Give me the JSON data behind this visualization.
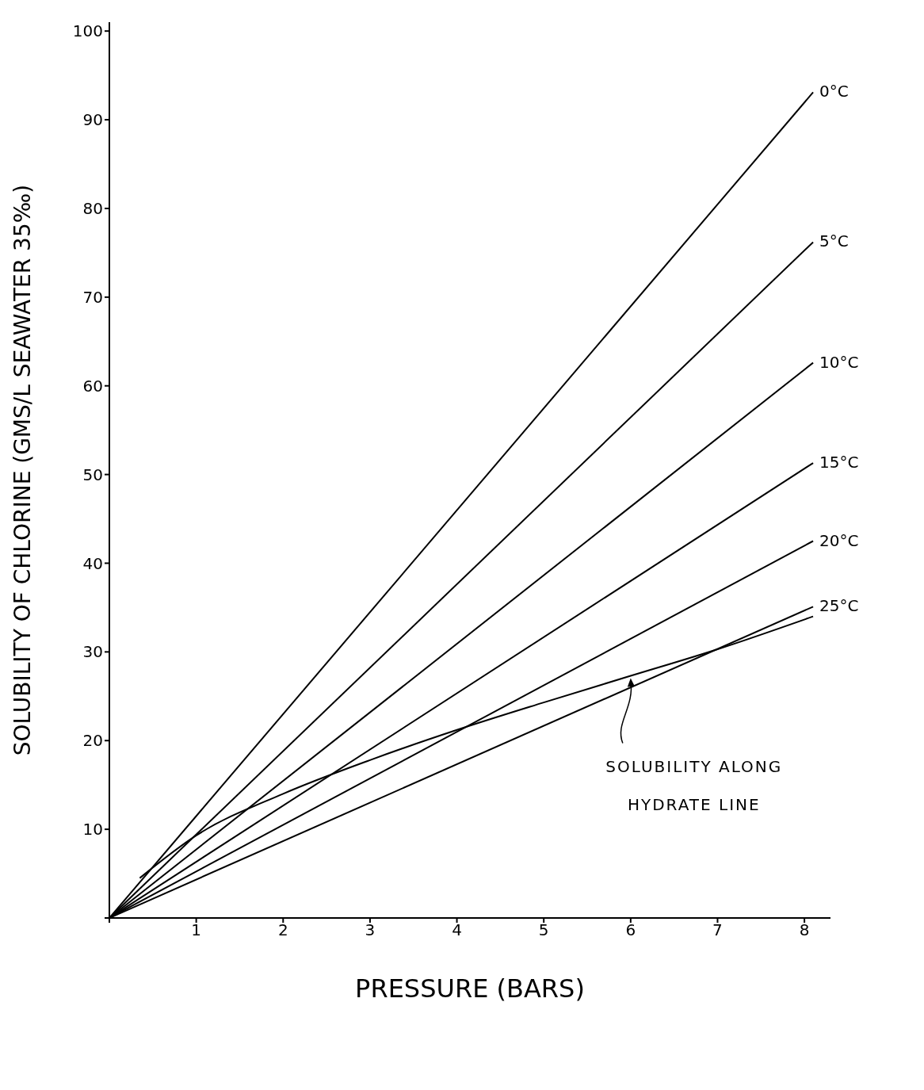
{
  "chart_data": {
    "type": "line",
    "xlabel": "PRESSURE  (BARS)",
    "ylabel": "SOLUBILITY OF CHLORINE (GMS/L SEAWATER 35‰)",
    "xlim": [
      0,
      8.3
    ],
    "ylim": [
      0,
      101
    ],
    "xticks": [
      {
        "value": 0,
        "label": null
      },
      1,
      2,
      3,
      4,
      5,
      6,
      7,
      8
    ],
    "yticks": [
      {
        "value": 0,
        "label": null
      },
      10,
      20,
      30,
      40,
      50,
      60,
      70,
      80,
      90,
      100
    ],
    "marker": "none",
    "line_style": "solid",
    "series": [
      {
        "name": "0°C",
        "color": "#000000",
        "x": [
          0,
          8.1
        ],
        "values": [
          0,
          93.1
        ]
      },
      {
        "name": "5°C",
        "color": "#000000",
        "x": [
          0,
          8.1
        ],
        "values": [
          0,
          76.2
        ]
      },
      {
        "name": "10°C",
        "color": "#000000",
        "x": [
          0,
          8.1
        ],
        "values": [
          0,
          62.6
        ]
      },
      {
        "name": "15°C",
        "color": "#000000",
        "x": [
          0,
          8.1
        ],
        "values": [
          0,
          51.3
        ]
      },
      {
        "name": "20°C",
        "color": "#000000",
        "x": [
          0,
          8.1
        ],
        "values": [
          0,
          42.5
        ]
      },
      {
        "name": "25°C",
        "color": "#000000",
        "x": [
          0,
          8.1
        ],
        "values": [
          0,
          35.1
        ]
      },
      {
        "color": "#000000",
        "x": [
          0.35,
          1,
          2,
          3,
          4,
          5,
          6,
          7,
          8.1
        ],
        "values": [
          4.5,
          9.3,
          14,
          17.8,
          21.2,
          24.3,
          27.3,
          30.3,
          34
        ]
      }
    ],
    "annotations": [
      "SOLUBILITY ALONG HYDRATE LINE"
    ]
  }
}
